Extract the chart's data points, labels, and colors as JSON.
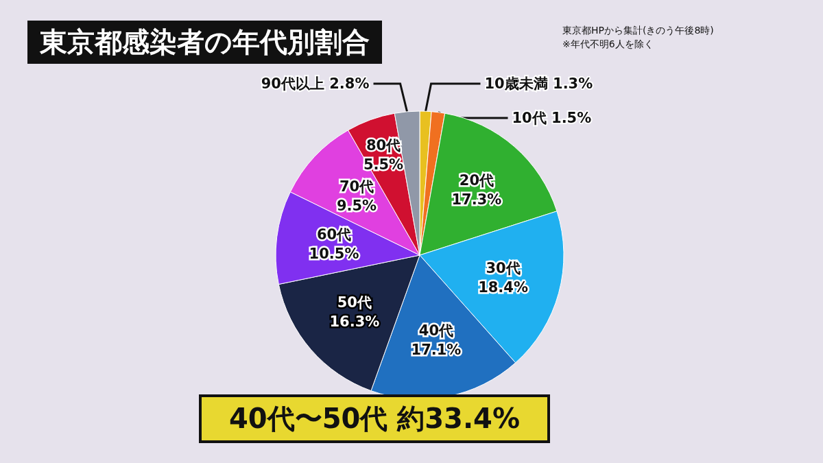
{
  "chart_data": {
    "type": "pie",
    "title": "東京都感染者の年代別割合",
    "categories": [
      "10歳未満",
      "10代",
      "20代",
      "30代",
      "40代",
      "50代",
      "60代",
      "70代",
      "80代",
      "90代以上"
    ],
    "values": [
      1.3,
      1.5,
      17.3,
      18.4,
      17.1,
      16.3,
      10.5,
      9.5,
      5.5,
      2.8
    ],
    "colors": [
      "#e8c020",
      "#f07020",
      "#30b030",
      "#20b0f0",
      "#2070c0",
      "#1a2545",
      "#8030f0",
      "#e040e0",
      "#d01030",
      "#9098a8"
    ],
    "value_labels": [
      "1.3%",
      "1.5%",
      "17.3%",
      "18.4%",
      "17.1%",
      "16.3%",
      "10.5%",
      "9.5%",
      "5.5%",
      "2.8%"
    ],
    "legend": false,
    "annotations": [
      "東京都HPから集計(きのう午後8時)",
      "※年代不明6人を除く",
      "40代〜50代 約33.4%"
    ]
  }
}
